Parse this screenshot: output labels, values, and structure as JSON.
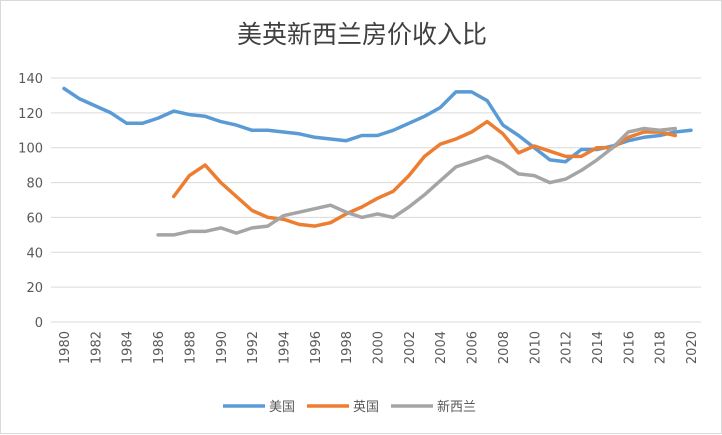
{
  "chart_data": {
    "type": "line",
    "title": "美英新西兰房价收入比",
    "xlabel": "",
    "ylabel": "",
    "xlim": [
      1980,
      2020
    ],
    "ylim": [
      0,
      140
    ],
    "y_ticks": [
      0,
      20,
      40,
      60,
      80,
      100,
      120,
      140
    ],
    "x_ticks": [
      1980,
      1982,
      1984,
      1986,
      1988,
      1990,
      1992,
      1994,
      1996,
      1998,
      2000,
      2002,
      2004,
      2006,
      2008,
      2010,
      2012,
      2014,
      2016,
      2018,
      2020
    ],
    "grid": "horizontal",
    "legend": "bottom",
    "series": [
      {
        "name": "美国",
        "color": "#5b9bd5",
        "start": 1980,
        "values": [
          134,
          128,
          124,
          120,
          114,
          114,
          117,
          121,
          119,
          118,
          115,
          113,
          110,
          110,
          109,
          108,
          106,
          105,
          104,
          107,
          107,
          110,
          114,
          118,
          123,
          132,
          132,
          127,
          113,
          107,
          100,
          93,
          92,
          99,
          99,
          101,
          104,
          106,
          107,
          109,
          110
        ]
      },
      {
        "name": "英国",
        "color": "#ed7d31",
        "start": 1987,
        "values": [
          72,
          84,
          90,
          80,
          72,
          64,
          60,
          59,
          56,
          55,
          57,
          62,
          66,
          71,
          75,
          84,
          95,
          102,
          105,
          109,
          115,
          108,
          97,
          101,
          98,
          95,
          95,
          100,
          100,
          106,
          109,
          109,
          107
        ]
      },
      {
        "name": "新西兰",
        "color": "#a5a5a5",
        "start": 1986,
        "values": [
          50,
          50,
          52,
          52,
          54,
          51,
          54,
          55,
          61,
          63,
          65,
          67,
          63,
          60,
          62,
          60,
          66,
          73,
          81,
          89,
          92,
          95,
          91,
          85,
          84,
          80,
          82,
          87,
          93,
          100,
          109,
          111,
          110,
          111
        ]
      }
    ]
  }
}
